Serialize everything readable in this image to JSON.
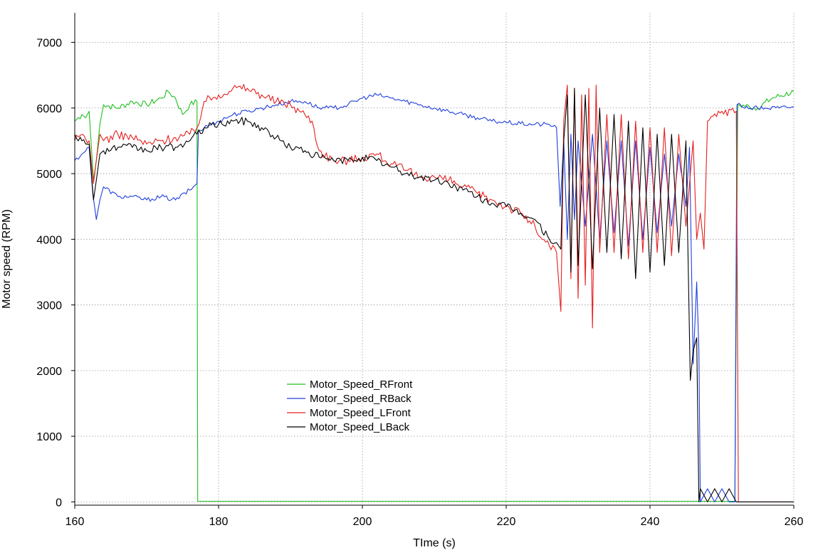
{
  "chart_data": {
    "type": "line",
    "xlabel": "TIme (s)",
    "ylabel": "Motor speed (RPM)",
    "xlim": [
      160,
      260
    ],
    "ylim": [
      -50,
      7450
    ],
    "xticks": [
      160,
      180,
      200,
      220,
      240,
      260
    ],
    "yticks": [
      0,
      1000,
      2000,
      3000,
      4000,
      5000,
      6000,
      7000
    ],
    "grid": true,
    "legend_position": "center-left",
    "series": [
      {
        "name": "Motor_Speed_RFront",
        "color": "#1fbf1f",
        "x": [
          160,
          161,
          161.5,
          162,
          162.6,
          163,
          163.5,
          164,
          166,
          168,
          170,
          172,
          173,
          174,
          175,
          176,
          177,
          177.1,
          180,
          200,
          220,
          240,
          246,
          251.8,
          252.2,
          255,
          257,
          260
        ],
        "y": [
          5800,
          5900,
          5850,
          5950,
          4900,
          5200,
          5750,
          6050,
          6000,
          6100,
          6050,
          6150,
          6250,
          6150,
          5900,
          6050,
          6100,
          10,
          10,
          10,
          10,
          10,
          10,
          10,
          6050,
          6000,
          6150,
          6250
        ]
      },
      {
        "name": "Motor_Speed_RBack",
        "color": "#1f3fdd",
        "x": [
          160,
          161,
          162,
          162.5,
          163,
          163.5,
          164,
          166,
          168,
          170,
          172,
          174,
          176,
          177,
          177.2,
          178,
          180,
          182,
          184,
          186,
          188,
          190,
          192,
          194,
          196,
          198,
          200,
          202,
          204,
          206,
          208,
          210,
          212,
          214,
          216,
          218,
          220,
          222,
          224,
          226,
          227,
          227.5,
          228,
          228.5,
          229,
          229.5,
          230,
          231,
          232,
          233,
          234,
          235,
          236,
          237,
          238,
          239,
          240,
          241,
          242,
          243,
          244,
          245,
          245.5,
          246,
          246.5,
          246.8,
          247,
          248,
          249,
          250,
          251,
          251.8,
          252.1,
          254,
          256,
          258,
          260
        ],
        "y": [
          5200,
          5300,
          5400,
          4700,
          4300,
          4600,
          4800,
          4650,
          4650,
          4600,
          4650,
          4600,
          4750,
          4850,
          5650,
          5700,
          5800,
          5900,
          5950,
          6000,
          6050,
          6100,
          6100,
          6000,
          6000,
          6050,
          6150,
          6200,
          6150,
          6100,
          6050,
          6000,
          5950,
          5900,
          5850,
          5800,
          5780,
          5760,
          5750,
          5750,
          5700,
          4500,
          5500,
          4000,
          5600,
          4300,
          5500,
          4200,
          5600,
          4000,
          5500,
          4100,
          5500,
          3900,
          5500,
          4000,
          5400,
          4100,
          5300,
          4200,
          5300,
          4500,
          5400,
          2100,
          3350,
          2300,
          0,
          200,
          0,
          200,
          0,
          0,
          6050,
          6000,
          6000,
          6000,
          6020
        ]
      },
      {
        "name": "Motor_Speed_LFront",
        "color": "#e52020",
        "x": [
          160,
          161,
          162,
          162.6,
          163,
          163.5,
          164,
          166,
          168,
          170,
          172,
          174,
          176,
          177,
          178,
          180,
          182,
          184,
          186,
          188,
          190,
          192,
          193,
          194,
          196,
          198,
          200,
          202,
          204,
          206,
          208,
          210,
          212,
          214,
          216,
          218,
          220,
          222,
          224,
          225,
          226,
          227,
          227.6,
          228,
          228.5,
          229,
          229.5,
          230,
          230.5,
          231,
          231.5,
          232,
          232.5,
          233,
          234,
          235,
          236,
          237,
          238,
          239,
          240,
          241,
          242,
          243,
          244,
          245,
          246,
          246.5,
          247,
          247.5,
          248,
          250,
          252,
          252.3,
          254,
          256,
          258,
          260
        ],
        "y": [
          5500,
          5600,
          5500,
          4850,
          5200,
          5600,
          5500,
          5600,
          5550,
          5450,
          5500,
          5550,
          5600,
          5700,
          6100,
          6200,
          6300,
          6300,
          6200,
          6100,
          6050,
          5900,
          5800,
          5350,
          5200,
          5200,
          5250,
          5300,
          5150,
          5050,
          4950,
          4950,
          4900,
          4800,
          4700,
          4600,
          4500,
          4400,
          4200,
          4000,
          3900,
          3800,
          2900,
          5800,
          6350,
          3400,
          6300,
          3100,
          6200,
          3300,
          6300,
          2650,
          6350,
          3800,
          5900,
          3800,
          5900,
          3700,
          5800,
          3800,
          5700,
          3800,
          5700,
          3750,
          5600,
          4200,
          5500,
          4000,
          4400,
          3850,
          5800,
          5950,
          5950,
          0,
          0,
          0,
          0,
          0
        ]
      },
      {
        "name": "Motor_Speed_LBack",
        "color": "#000000",
        "x": [
          160,
          161,
          162,
          162.6,
          163,
          163.5,
          164,
          166,
          168,
          170,
          172,
          174,
          176,
          177,
          178,
          180,
          182,
          184,
          186,
          188,
          190,
          192,
          194,
          196,
          198,
          200,
          202,
          204,
          206,
          208,
          210,
          212,
          214,
          216,
          218,
          220,
          222,
          224,
          226,
          227,
          227.6,
          228,
          228.5,
          229,
          229.5,
          230,
          231,
          232,
          233,
          234,
          235,
          236,
          237,
          238,
          239,
          240,
          241,
          242,
          243,
          244,
          245,
          245.6,
          246,
          246.5,
          246.8,
          247,
          248,
          249,
          250,
          251,
          252,
          254,
          256,
          258,
          260
        ],
        "y": [
          5600,
          5500,
          5450,
          4600,
          4900,
          5300,
          5350,
          5400,
          5400,
          5350,
          5400,
          5400,
          5500,
          5600,
          5700,
          5750,
          5800,
          5800,
          5700,
          5550,
          5400,
          5350,
          5250,
          5200,
          5200,
          5250,
          5200,
          5100,
          5000,
          4950,
          4900,
          4850,
          4750,
          4650,
          4550,
          4500,
          4400,
          4300,
          4000,
          3950,
          3850,
          5500,
          6200,
          3500,
          6300,
          3600,
          6200,
          3550,
          6000,
          3800,
          5900,
          3700,
          5800,
          3400,
          5700,
          3500,
          5600,
          3600,
          5600,
          3800,
          5500,
          1850,
          2300,
          2500,
          0,
          200,
          0,
          200,
          0,
          200,
          0,
          0,
          0,
          0,
          0
        ]
      }
    ]
  }
}
